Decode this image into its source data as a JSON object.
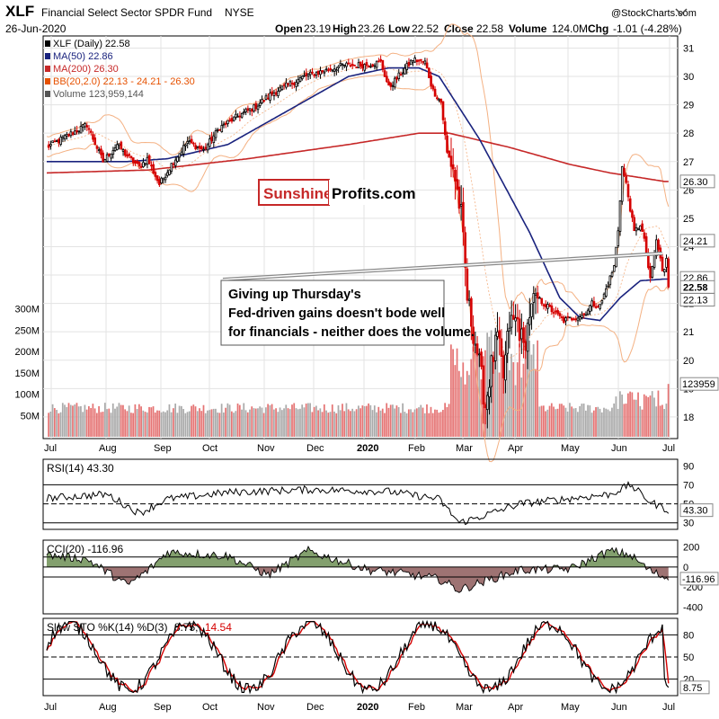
{
  "header": {
    "symbol": "XLF",
    "name": "Financial Select Sector SPDR Fund",
    "exchange": "NYSE",
    "watermark": "@StockCharts.com",
    "date": "26-Jun-2020",
    "ohlc": {
      "open_label": "Open",
      "open": "23.19",
      "high_label": "High",
      "high": "23.26",
      "low_label": "Low",
      "low": "22.52",
      "close_label": "Close",
      "close": "22.58",
      "volume_label": "Volume",
      "volume": "124.0M",
      "chg_label": "Chg",
      "chg": "-1.01 (-4.28%)"
    }
  },
  "legend": [
    {
      "text": "XLF (Daily) 22.58",
      "color": "#000000"
    },
    {
      "text": "MA(50) 22.86",
      "color": "#1a237e"
    },
    {
      "text": "MA(200) 26.30",
      "color": "#c62828"
    },
    {
      "text": "BB(20,2.0) 22.13 - 24.21 - 26.30",
      "color": "#e65100"
    },
    {
      "text": "Volume 123,959,144",
      "color": "#555555"
    }
  ],
  "badges": [
    {
      "text": "26.30",
      "price": 26.3
    },
    {
      "text": "24.21",
      "price": 24.21
    },
    {
      "text": "22.86",
      "price": 22.9
    },
    {
      "text": "22.58",
      "price": 22.58
    },
    {
      "text": "22.13",
      "price": 22.13
    }
  ],
  "volume_badge": "123959",
  "logo": {
    "part1": "Sunshine",
    "part2": "Profits.com"
  },
  "annotation": "Giving up Thursday's Fed-driven gains doesn't bode well for financials - neither does the volume.",
  "colors": {
    "up": "#000000",
    "down": "#d50000",
    "ma50": "#1a237e",
    "ma200": "#c62828",
    "bb": "#f4b183",
    "vol_up": "#aaaaaa",
    "vol_down": "#e57373"
  },
  "chart_data": [
    {
      "type": "candlestick",
      "title": "XLF (Daily) 22.58",
      "x_months": [
        "Jul",
        "Aug",
        "Sep",
        "Oct",
        "Nov",
        "Dec",
        "2020",
        "Feb",
        "Mar",
        "Apr",
        "May",
        "Jun",
        "Jul"
      ],
      "y_ticks": [
        18,
        19,
        20,
        21,
        22,
        23,
        24,
        25,
        26,
        27,
        28,
        29,
        30,
        31
      ],
      "ylim": [
        17.3,
        31.3
      ],
      "price_anchors": [
        [
          0,
          27.5
        ],
        [
          10,
          27.9
        ],
        [
          20,
          28.3
        ],
        [
          28,
          27.0
        ],
        [
          35,
          27.6
        ],
        [
          40,
          27.2
        ],
        [
          46,
          26.8
        ],
        [
          50,
          27.1
        ],
        [
          56,
          26.2
        ],
        [
          62,
          26.9
        ],
        [
          70,
          27.7
        ],
        [
          78,
          27.4
        ],
        [
          86,
          28.2
        ],
        [
          95,
          28.6
        ],
        [
          103,
          28.9
        ],
        [
          112,
          29.4
        ],
        [
          120,
          29.7
        ],
        [
          128,
          30.0
        ],
        [
          138,
          30.2
        ],
        [
          148,
          30.4
        ],
        [
          158,
          30.4
        ],
        [
          166,
          30.5
        ],
        [
          170,
          29.6
        ],
        [
          176,
          30.1
        ],
        [
          182,
          30.6
        ],
        [
          188,
          30.5
        ],
        [
          192,
          29.5
        ],
        [
          196,
          29.1
        ],
        [
          199,
          27.3
        ],
        [
          202,
          26.8
        ],
        [
          206,
          25.1
        ],
        [
          209,
          22.2
        ],
        [
          212,
          21.0
        ],
        [
          214,
          20.3
        ],
        [
          218,
          18.4
        ],
        [
          221,
          19.8
        ],
        [
          224,
          20.8
        ],
        [
          227,
          19.4
        ],
        [
          230,
          21.3
        ],
        [
          234,
          21.4
        ],
        [
          237,
          20.4
        ],
        [
          242,
          22.3
        ],
        [
          247,
          22.0
        ],
        [
          252,
          21.7
        ],
        [
          257,
          21.4
        ],
        [
          262,
          21.5
        ],
        [
          267,
          21.6
        ],
        [
          271,
          22.0
        ],
        [
          275,
          21.9
        ],
        [
          279,
          22.7
        ],
        [
          282,
          23.3
        ],
        [
          284,
          24.6
        ],
        [
          286,
          26.8
        ],
        [
          288,
          26.2
        ],
        [
          292,
          24.5
        ],
        [
          295,
          24.8
        ],
        [
          297,
          24.2
        ],
        [
          300,
          22.8
        ],
        [
          303,
          24.2
        ],
        [
          305,
          23.6
        ],
        [
          307,
          22.6
        ]
      ],
      "ma50_anchors": [
        [
          0,
          27.0
        ],
        [
          40,
          27.0
        ],
        [
          60,
          27.1
        ],
        [
          90,
          27.6
        ],
        [
          120,
          28.8
        ],
        [
          150,
          30.0
        ],
        [
          170,
          30.3
        ],
        [
          185,
          30.3
        ],
        [
          195,
          30.0
        ],
        [
          215,
          27.8
        ],
        [
          240,
          24.5
        ],
        [
          255,
          22.2
        ],
        [
          265,
          21.5
        ],
        [
          275,
          21.4
        ],
        [
          285,
          22.2
        ],
        [
          295,
          22.8
        ],
        [
          307,
          22.86
        ]
      ],
      "ma200_anchors": [
        [
          0,
          26.6
        ],
        [
          50,
          26.7
        ],
        [
          100,
          27.1
        ],
        [
          150,
          27.6
        ],
        [
          185,
          28.0
        ],
        [
          200,
          28.0
        ],
        [
          230,
          27.5
        ],
        [
          260,
          26.9
        ],
        [
          280,
          26.6
        ],
        [
          307,
          26.3
        ]
      ],
      "volume_axis": [
        "50M",
        "100M",
        "150M",
        "200M",
        "250M",
        "300M"
      ],
      "volume_ylim": [
        0,
        350
      ]
    },
    {
      "type": "line",
      "title": "RSI(14) 43.30",
      "y_ticks": [
        30,
        50,
        70,
        90
      ],
      "ylim": [
        25,
        95
      ],
      "ref_lines": [
        30,
        50,
        70
      ],
      "last_value": "43.30"
    },
    {
      "type": "area",
      "title": "CCI(20) -116.96",
      "y_ticks": [
        -400,
        -200,
        0,
        200
      ],
      "ylim": [
        -450,
        250
      ],
      "ref_lines": [
        -100,
        0,
        100
      ],
      "last_value": "-116.96"
    },
    {
      "type": "line",
      "title_prefix": "Slow STO %K(14) %D(3)",
      "k_value": "8.75,",
      "d_value": "14.54",
      "y_ticks": [
        20,
        50,
        80
      ],
      "ylim": [
        0,
        100
      ],
      "ref_lines": [
        20,
        50,
        80
      ],
      "last_value": "8.75"
    }
  ]
}
